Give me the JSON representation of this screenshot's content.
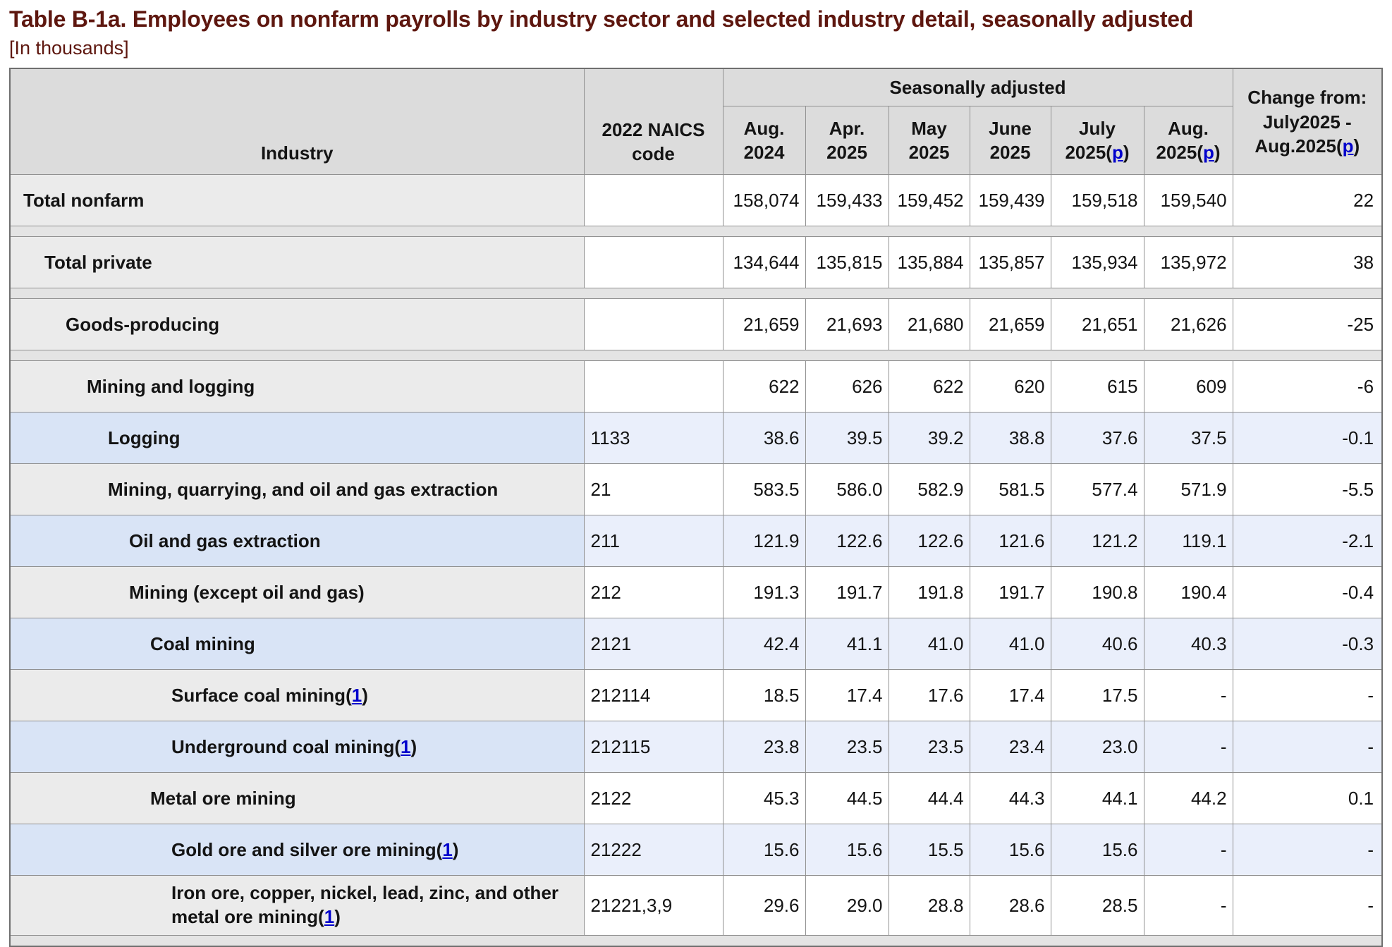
{
  "title": "Table B-1a. Employees on nonfarm payrolls by industry sector and selected industry detail, seasonally adjusted",
  "units_note": "[In thousands]",
  "colors": {
    "title_maroon": "#5e170f",
    "header_bg": "#dcdcdc",
    "row_gray": "#ebebeb",
    "row_blue": "#d9e4f6",
    "row_blue_light": "#eaeffb",
    "spacer_gray": "#e4e4e4",
    "link_blue": "#0000cc"
  },
  "table": {
    "industry_header": "Industry",
    "naics_header": "2022 NAICS code",
    "group_header": "Seasonally adjusted",
    "months": [
      {
        "line1": "Aug.",
        "line2": "2024",
        "footnote": null
      },
      {
        "line1": "Apr.",
        "line2": "2025",
        "footnote": null
      },
      {
        "line1": "May",
        "line2": "2025",
        "footnote": null
      },
      {
        "line1": "June",
        "line2": "2025",
        "footnote": null
      },
      {
        "line1": "July",
        "line2": "2025",
        "footnote": "p"
      },
      {
        "line1": "Aug.",
        "line2": "2025",
        "footnote": "p"
      }
    ],
    "change_header": {
      "line1": "Change from:",
      "line2": "July2025 -",
      "line3_prefix": "Aug.2025(",
      "footnote": "p",
      "line3_suffix": ")"
    },
    "rows": [
      {
        "label": "Total nonfarm",
        "level": 0,
        "naics": "",
        "shade": "gray",
        "footnote": null,
        "values": [
          "158,074",
          "159,433",
          "159,452",
          "159,439",
          "159,518",
          "159,540"
        ],
        "change": "22",
        "spacer_after": true
      },
      {
        "label": "Total private",
        "level": 1,
        "naics": "",
        "shade": "gray",
        "footnote": null,
        "values": [
          "134,644",
          "135,815",
          "135,884",
          "135,857",
          "135,934",
          "135,972"
        ],
        "change": "38",
        "spacer_after": true
      },
      {
        "label": "Goods-producing",
        "level": 2,
        "naics": "",
        "shade": "gray",
        "footnote": null,
        "values": [
          "21,659",
          "21,693",
          "21,680",
          "21,659",
          "21,651",
          "21,626"
        ],
        "change": "-25",
        "spacer_after": true
      },
      {
        "label": "Mining and logging",
        "level": 3,
        "naics": "",
        "shade": "gray",
        "footnote": null,
        "values": [
          "622",
          "626",
          "622",
          "620",
          "615",
          "609"
        ],
        "change": "-6",
        "spacer_after": false
      },
      {
        "label": "Logging",
        "level": 4,
        "naics": "1133",
        "shade": "blue",
        "footnote": null,
        "values": [
          "38.6",
          "39.5",
          "39.2",
          "38.8",
          "37.6",
          "37.5"
        ],
        "change": "-0.1",
        "spacer_after": false
      },
      {
        "label": "Mining, quarrying, and oil and gas extraction",
        "level": 4,
        "naics": "21",
        "shade": "gray",
        "footnote": null,
        "values": [
          "583.5",
          "586.0",
          "582.9",
          "581.5",
          "577.4",
          "571.9"
        ],
        "change": "-5.5",
        "spacer_after": false
      },
      {
        "label": "Oil and gas extraction",
        "level": 5,
        "naics": "211",
        "shade": "blue",
        "footnote": null,
        "values": [
          "121.9",
          "122.6",
          "122.6",
          "121.6",
          "121.2",
          "119.1"
        ],
        "change": "-2.1",
        "spacer_after": false
      },
      {
        "label": "Mining (except oil and gas)",
        "level": 5,
        "naics": "212",
        "shade": "gray",
        "footnote": null,
        "values": [
          "191.3",
          "191.7",
          "191.8",
          "191.7",
          "190.8",
          "190.4"
        ],
        "change": "-0.4",
        "spacer_after": false
      },
      {
        "label": "Coal mining",
        "level": 6,
        "naics": "2121",
        "shade": "blue",
        "footnote": null,
        "values": [
          "42.4",
          "41.1",
          "41.0",
          "41.0",
          "40.6",
          "40.3"
        ],
        "change": "-0.3",
        "spacer_after": false
      },
      {
        "label": "Surface coal mining",
        "level": 7,
        "naics": "212114",
        "shade": "gray",
        "footnote": "1",
        "values": [
          "18.5",
          "17.4",
          "17.6",
          "17.4",
          "17.5",
          "-"
        ],
        "change": "-",
        "spacer_after": false
      },
      {
        "label": "Underground coal mining",
        "level": 7,
        "naics": "212115",
        "shade": "blue",
        "footnote": "1",
        "values": [
          "23.8",
          "23.5",
          "23.5",
          "23.4",
          "23.0",
          "-"
        ],
        "change": "-",
        "spacer_after": false
      },
      {
        "label": "Metal ore mining",
        "level": 6,
        "naics": "2122",
        "shade": "gray",
        "footnote": null,
        "values": [
          "45.3",
          "44.5",
          "44.4",
          "44.3",
          "44.1",
          "44.2"
        ],
        "change": "0.1",
        "spacer_after": false
      },
      {
        "label": "Gold ore and silver ore mining",
        "level": 7,
        "naics": "21222",
        "shade": "blue",
        "footnote": "1",
        "values": [
          "15.6",
          "15.6",
          "15.5",
          "15.6",
          "15.6",
          "-"
        ],
        "change": "-",
        "spacer_after": false
      },
      {
        "label": "Iron ore, copper, nickel, lead, zinc, and other metal ore mining",
        "level": 7,
        "naics": "21221,3,9",
        "shade": "gray",
        "footnote": "1",
        "values": [
          "29.6",
          "29.0",
          "28.8",
          "28.6",
          "28.5",
          "-"
        ],
        "change": "-",
        "spacer_after": true
      }
    ]
  }
}
